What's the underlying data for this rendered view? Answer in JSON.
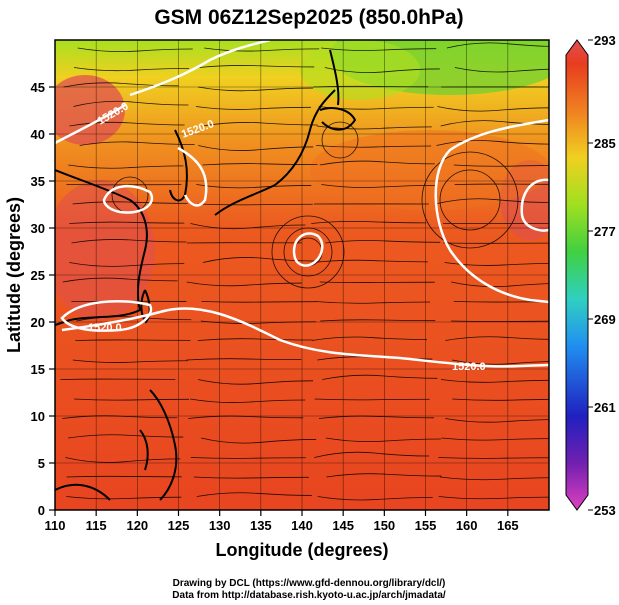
{
  "title": "GSM 06Z12Sep2025 (850.0hPa)",
  "xaxis": {
    "label": "Longitude (degrees)",
    "range": [
      110,
      170
    ],
    "ticks": [
      "110",
      "115",
      "120",
      "125",
      "130",
      "135",
      "140",
      "145",
      "150",
      "155",
      "160",
      "165"
    ]
  },
  "yaxis": {
    "label": "Latitude  (degrees)",
    "range": [
      0,
      50
    ],
    "ticks": [
      "0",
      "5",
      "10",
      "15",
      "20",
      "25",
      "30",
      "35",
      "40",
      "45"
    ]
  },
  "colorbar": {
    "ticks": [
      "253",
      "261",
      "269",
      "277",
      "285",
      "293"
    ],
    "range": [
      253,
      293
    ],
    "colors": [
      "#e040c0",
      "#3030d0",
      "#20a0f0",
      "#30d0a0",
      "#50d030",
      "#c0e020",
      "#f0c020",
      "#f08020",
      "#e84020",
      "#e05050"
    ]
  },
  "contour_label": "1520.0",
  "credits": {
    "line1": "Drawing by DCL (https://www.gfd-dennou.org/library/dcl/)",
    "line2": "Data from http://database.rish.kyoto-u.ac.jp/arch/jmadata/"
  }
}
